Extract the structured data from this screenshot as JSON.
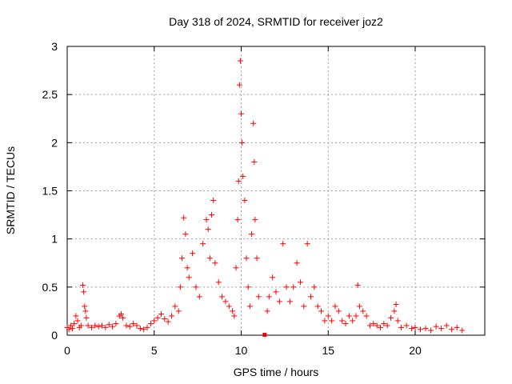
{
  "chart_data": {
    "type": "scatter",
    "title": "Day 318 of 2024, SRMTID for receiver joz2",
    "xlabel": "GPS time / hours",
    "ylabel": "SRMTID / TECUs",
    "xlim": [
      0,
      24
    ],
    "ylim": [
      0,
      3
    ],
    "xticks": [
      0,
      5,
      10,
      15,
      20
    ],
    "yticks": [
      0,
      0.5,
      1,
      1.5,
      2,
      2.5,
      3
    ],
    "xtick_labels": [
      "0",
      "5",
      "10",
      "15",
      "20"
    ],
    "ytick_labels": [
      "0",
      "0.5",
      "1",
      "1.5",
      "2",
      "2.5",
      "3"
    ],
    "grid": true,
    "marker": "+",
    "color": "#ff0000",
    "series": [
      {
        "name": "SRMTID",
        "points": [
          [
            0.0,
            0.08
          ],
          [
            0.1,
            0.06
          ],
          [
            0.2,
            0.1
          ],
          [
            0.3,
            0.07
          ],
          [
            0.4,
            0.12
          ],
          [
            0.5,
            0.2
          ],
          [
            0.6,
            0.15
          ],
          [
            0.7,
            0.08
          ],
          [
            0.8,
            0.1
          ],
          [
            0.9,
            0.52
          ],
          [
            0.95,
            0.45
          ],
          [
            1.0,
            0.3
          ],
          [
            1.05,
            0.25
          ],
          [
            1.1,
            0.18
          ],
          [
            1.2,
            0.1
          ],
          [
            1.4,
            0.08
          ],
          [
            1.6,
            0.1
          ],
          [
            1.8,
            0.09
          ],
          [
            2.0,
            0.1
          ],
          [
            2.2,
            0.08
          ],
          [
            2.4,
            0.11
          ],
          [
            2.6,
            0.09
          ],
          [
            2.8,
            0.12
          ],
          [
            3.0,
            0.2
          ],
          [
            3.1,
            0.22
          ],
          [
            3.2,
            0.18
          ],
          [
            3.4,
            0.1
          ],
          [
            3.6,
            0.09
          ],
          [
            3.8,
            0.12
          ],
          [
            4.0,
            0.1
          ],
          [
            4.2,
            0.07
          ],
          [
            4.4,
            0.06
          ],
          [
            4.6,
            0.08
          ],
          [
            4.8,
            0.12
          ],
          [
            5.0,
            0.15
          ],
          [
            5.2,
            0.18
          ],
          [
            5.4,
            0.22
          ],
          [
            5.6,
            0.17
          ],
          [
            5.8,
            0.14
          ],
          [
            6.0,
            0.2
          ],
          [
            6.2,
            0.3
          ],
          [
            6.4,
            0.25
          ],
          [
            6.5,
            0.5
          ],
          [
            6.6,
            0.8
          ],
          [
            6.7,
            1.22
          ],
          [
            6.8,
            1.05
          ],
          [
            6.9,
            0.7
          ],
          [
            7.0,
            0.6
          ],
          [
            7.2,
            0.85
          ],
          [
            7.4,
            0.5
          ],
          [
            7.6,
            0.4
          ],
          [
            7.8,
            0.95
          ],
          [
            8.0,
            1.2
          ],
          [
            8.1,
            1.1
          ],
          [
            8.2,
            0.8
          ],
          [
            8.3,
            1.25
          ],
          [
            8.4,
            1.4
          ],
          [
            8.5,
            0.75
          ],
          [
            8.7,
            0.55
          ],
          [
            8.9,
            0.4
          ],
          [
            9.1,
            0.35
          ],
          [
            9.3,
            0.3
          ],
          [
            9.5,
            0.25
          ],
          [
            9.6,
            0.2
          ],
          [
            9.7,
            0.7
          ],
          [
            9.8,
            1.2
          ],
          [
            9.85,
            1.6
          ],
          [
            9.9,
            2.6
          ],
          [
            9.95,
            2.85
          ],
          [
            10.0,
            2.3
          ],
          [
            10.05,
            2.0
          ],
          [
            10.1,
            1.65
          ],
          [
            10.2,
            1.4
          ],
          [
            10.3,
            0.8
          ],
          [
            10.4,
            0.5
          ],
          [
            10.5,
            0.3
          ],
          [
            10.6,
            1.05
          ],
          [
            10.7,
            2.2
          ],
          [
            10.75,
            1.8
          ],
          [
            10.8,
            1.2
          ],
          [
            10.9,
            0.8
          ],
          [
            11.0,
            0.4
          ],
          [
            11.5,
            0.25
          ],
          [
            11.6,
            0.4
          ],
          [
            11.8,
            0.6
          ],
          [
            12.0,
            0.45
          ],
          [
            12.2,
            0.35
          ],
          [
            12.4,
            0.95
          ],
          [
            12.6,
            0.5
          ],
          [
            12.8,
            0.35
          ],
          [
            13.0,
            0.5
          ],
          [
            13.2,
            0.75
          ],
          [
            13.4,
            0.55
          ],
          [
            13.6,
            0.3
          ],
          [
            13.8,
            0.95
          ],
          [
            14.0,
            0.4
          ],
          [
            14.2,
            0.5
          ],
          [
            14.4,
            0.3
          ],
          [
            14.6,
            0.25
          ],
          [
            14.8,
            0.15
          ],
          [
            15.0,
            0.2
          ],
          [
            15.2,
            0.15
          ],
          [
            15.4,
            0.3
          ],
          [
            15.6,
            0.25
          ],
          [
            15.8,
            0.15
          ],
          [
            16.0,
            0.12
          ],
          [
            16.2,
            0.2
          ],
          [
            16.4,
            0.15
          ],
          [
            16.6,
            0.2
          ],
          [
            16.7,
            0.52
          ],
          [
            16.8,
            0.3
          ],
          [
            17.0,
            0.25
          ],
          [
            17.2,
            0.2
          ],
          [
            17.4,
            0.1
          ],
          [
            17.6,
            0.12
          ],
          [
            17.8,
            0.1
          ],
          [
            18.0,
            0.08
          ],
          [
            18.2,
            0.12
          ],
          [
            18.4,
            0.1
          ],
          [
            18.6,
            0.18
          ],
          [
            18.8,
            0.25
          ],
          [
            18.9,
            0.32
          ],
          [
            19.0,
            0.15
          ],
          [
            19.2,
            0.08
          ],
          [
            19.5,
            0.1
          ],
          [
            19.8,
            0.07
          ],
          [
            20.0,
            0.08
          ],
          [
            20.3,
            0.06
          ],
          [
            20.6,
            0.07
          ],
          [
            20.9,
            0.05
          ],
          [
            21.2,
            0.09
          ],
          [
            21.5,
            0.07
          ],
          [
            21.8,
            0.1
          ],
          [
            22.1,
            0.06
          ],
          [
            22.4,
            0.08
          ],
          [
            22.7,
            0.05
          ]
        ]
      }
    ],
    "marker_square": [
      11.35,
      0.0
    ]
  }
}
